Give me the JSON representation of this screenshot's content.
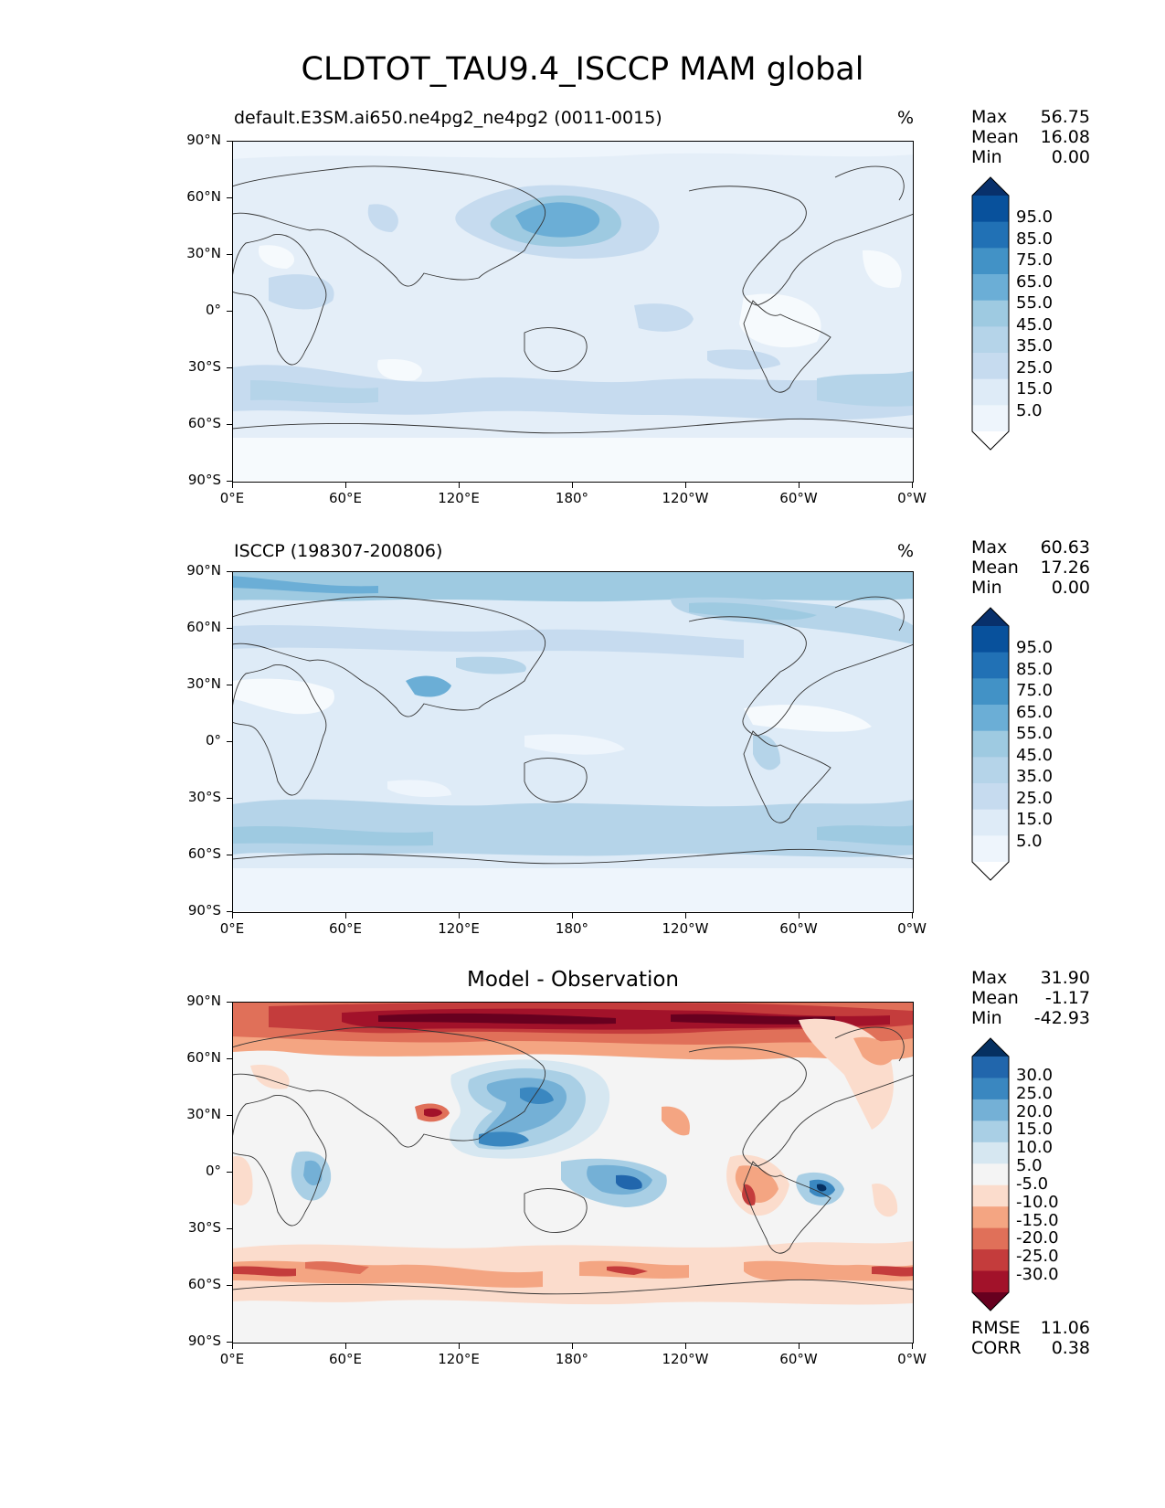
{
  "title": "CLDTOT_TAU9.4_ISCCP MAM global",
  "x_ticks": [
    "0°E",
    "60°E",
    "120°E",
    "180°",
    "120°W",
    "60°W",
    "0°W"
  ],
  "y_ticks": [
    "90°N",
    "60°N",
    "30°N",
    "0°",
    "30°S",
    "60°S",
    "90°S"
  ],
  "panels": [
    {
      "title": "default.E3SM.ai650.ne4pg2_ne4pg2 (0011-0015)",
      "unit": "%",
      "stats": {
        "max_label": "Max",
        "max": "56.75",
        "mean_label": "Mean",
        "mean": "16.08",
        "min_label": "Min",
        "min": "0.00"
      },
      "colorbar": {
        "labels": [
          "95.0",
          "85.0",
          "75.0",
          "65.0",
          "55.0",
          "45.0",
          "35.0",
          "25.0",
          "15.0",
          "5.0"
        ],
        "colors": [
          "#08306b",
          "#08519c",
          "#2171b5",
          "#4292c6",
          "#6baed6",
          "#9ecae1",
          "#b5d4e9",
          "#c6dbef",
          "#deebf7",
          "#eef5fc",
          "#ffffff"
        ]
      }
    },
    {
      "title": "ISCCP (198307-200806)",
      "unit": "%",
      "stats": {
        "max_label": "Max",
        "max": "60.63",
        "mean_label": "Mean",
        "mean": "17.26",
        "min_label": "Min",
        "min": "0.00"
      },
      "colorbar": {
        "labels": [
          "95.0",
          "85.0",
          "75.0",
          "65.0",
          "55.0",
          "45.0",
          "35.0",
          "25.0",
          "15.0",
          "5.0"
        ],
        "colors": [
          "#08306b",
          "#08519c",
          "#2171b5",
          "#4292c6",
          "#6baed6",
          "#9ecae1",
          "#b5d4e9",
          "#c6dbef",
          "#deebf7",
          "#eef5fc",
          "#ffffff"
        ]
      }
    },
    {
      "title": "Model - Observation",
      "unit": "",
      "stats": {
        "max_label": "Max",
        "max": "31.90",
        "mean_label": "Mean",
        "mean": "-1.17",
        "min_label": "Min",
        "min": "-42.93"
      },
      "colorbar": {
        "labels": [
          "30.0",
          "25.0",
          "20.0",
          "15.0",
          "10.0",
          "5.0",
          "-5.0",
          "-10.0",
          "-15.0",
          "-20.0",
          "-25.0",
          "-30.0"
        ],
        "colors": [
          "#053061",
          "#2166ac",
          "#3a87c0",
          "#74b0d6",
          "#a9cfe5",
          "#d6e7f1",
          "#f4f4f4",
          "#fbdccc",
          "#f4a582",
          "#e07059",
          "#c43c3c",
          "#a2122a",
          "#67001f"
        ]
      },
      "metrics": {
        "rmse_label": "RMSE",
        "rmse": "11.06",
        "corr_label": "CORR",
        "corr": "0.38"
      }
    }
  ]
}
